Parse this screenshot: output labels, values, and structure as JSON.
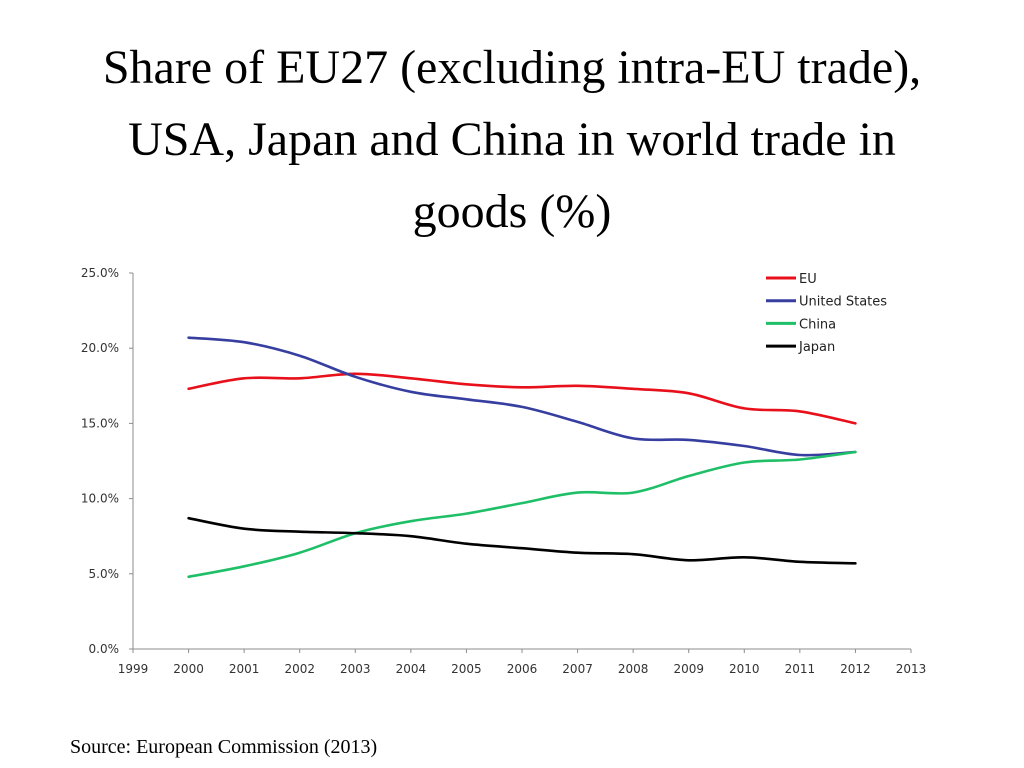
{
  "title_lines": [
    "Share of EU27 (excluding intra-EU trade),",
    "USA, Japan and China in world trade in",
    "goods (%)"
  ],
  "source": "Source: European Commission (2013)",
  "chart_data": {
    "type": "line",
    "title": "Share of EU27 (excluding intra-EU trade), USA, Japan and China in world trade in goods (%)",
    "xlabel": "",
    "ylabel": "",
    "xlim": [
      1999,
      2013
    ],
    "ylim": [
      0,
      25
    ],
    "x_ticks": [
      "1999",
      "2000",
      "2001",
      "2002",
      "2003",
      "2004",
      "2005",
      "2006",
      "2007",
      "2008",
      "2009",
      "2010",
      "2011",
      "2012",
      "2013"
    ],
    "y_ticks": [
      "0.0%",
      "5.0%",
      "10.0%",
      "15.0%",
      "20.0%",
      "25.0%"
    ],
    "x": [
      2000,
      2001,
      2002,
      2003,
      2004,
      2005,
      2006,
      2007,
      2008,
      2009,
      2010,
      2011,
      2012
    ],
    "legend_position": "top-right",
    "grid": false,
    "series": [
      {
        "name": "EU",
        "color": "#e8101a",
        "values": [
          17.3,
          18.0,
          18.0,
          18.3,
          18.0,
          17.6,
          17.4,
          17.5,
          17.3,
          17.0,
          16.0,
          15.8,
          15.0
        ]
      },
      {
        "name": "United States",
        "color": "#363ea0",
        "values": [
          20.7,
          20.4,
          19.5,
          18.1,
          17.1,
          16.6,
          16.1,
          15.1,
          14.0,
          13.9,
          13.5,
          12.9,
          13.1
        ]
      },
      {
        "name": "China",
        "color": "#1fbf68",
        "values": [
          4.8,
          5.5,
          6.4,
          7.7,
          8.5,
          9.0,
          9.7,
          10.4,
          10.4,
          11.5,
          12.4,
          12.6,
          13.1
        ]
      },
      {
        "name": "Japan",
        "color": "#000000",
        "values": [
          8.7,
          8.0,
          7.8,
          7.7,
          7.5,
          7.0,
          6.7,
          6.4,
          6.3,
          5.9,
          6.1,
          5.8,
          5.7
        ]
      }
    ]
  }
}
